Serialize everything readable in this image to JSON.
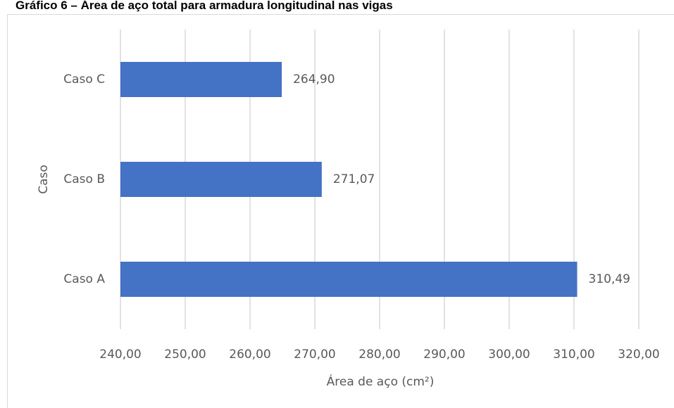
{
  "chart_data": {
    "type": "bar",
    "orientation": "horizontal",
    "title": "Gráfico 6 – Área de aço total para armadura longitudinal nas vigas",
    "x_label": "Área de aço (cm²)",
    "y_label": "Caso",
    "categories": [
      "Caso A",
      "Caso B",
      "Caso C"
    ],
    "values": [
      310.49,
      271.07,
      264.9
    ],
    "value_labels": [
      "310,49",
      "271,07",
      "264,90"
    ],
    "color": "#4472c4",
    "xlim": [
      240,
      320
    ],
    "xticks": [
      {
        "value": 240,
        "label": "240,00"
      },
      {
        "value": 250,
        "label": "250,00"
      },
      {
        "value": 260,
        "label": "260,00"
      },
      {
        "value": 270,
        "label": "270,00"
      },
      {
        "value": 280,
        "label": "280,00"
      },
      {
        "value": 290,
        "label": "290,00"
      },
      {
        "value": 300,
        "label": "300,00"
      },
      {
        "value": 310,
        "label": "310,00"
      },
      {
        "value": 320,
        "label": "320,00"
      }
    ],
    "grid": true
  }
}
